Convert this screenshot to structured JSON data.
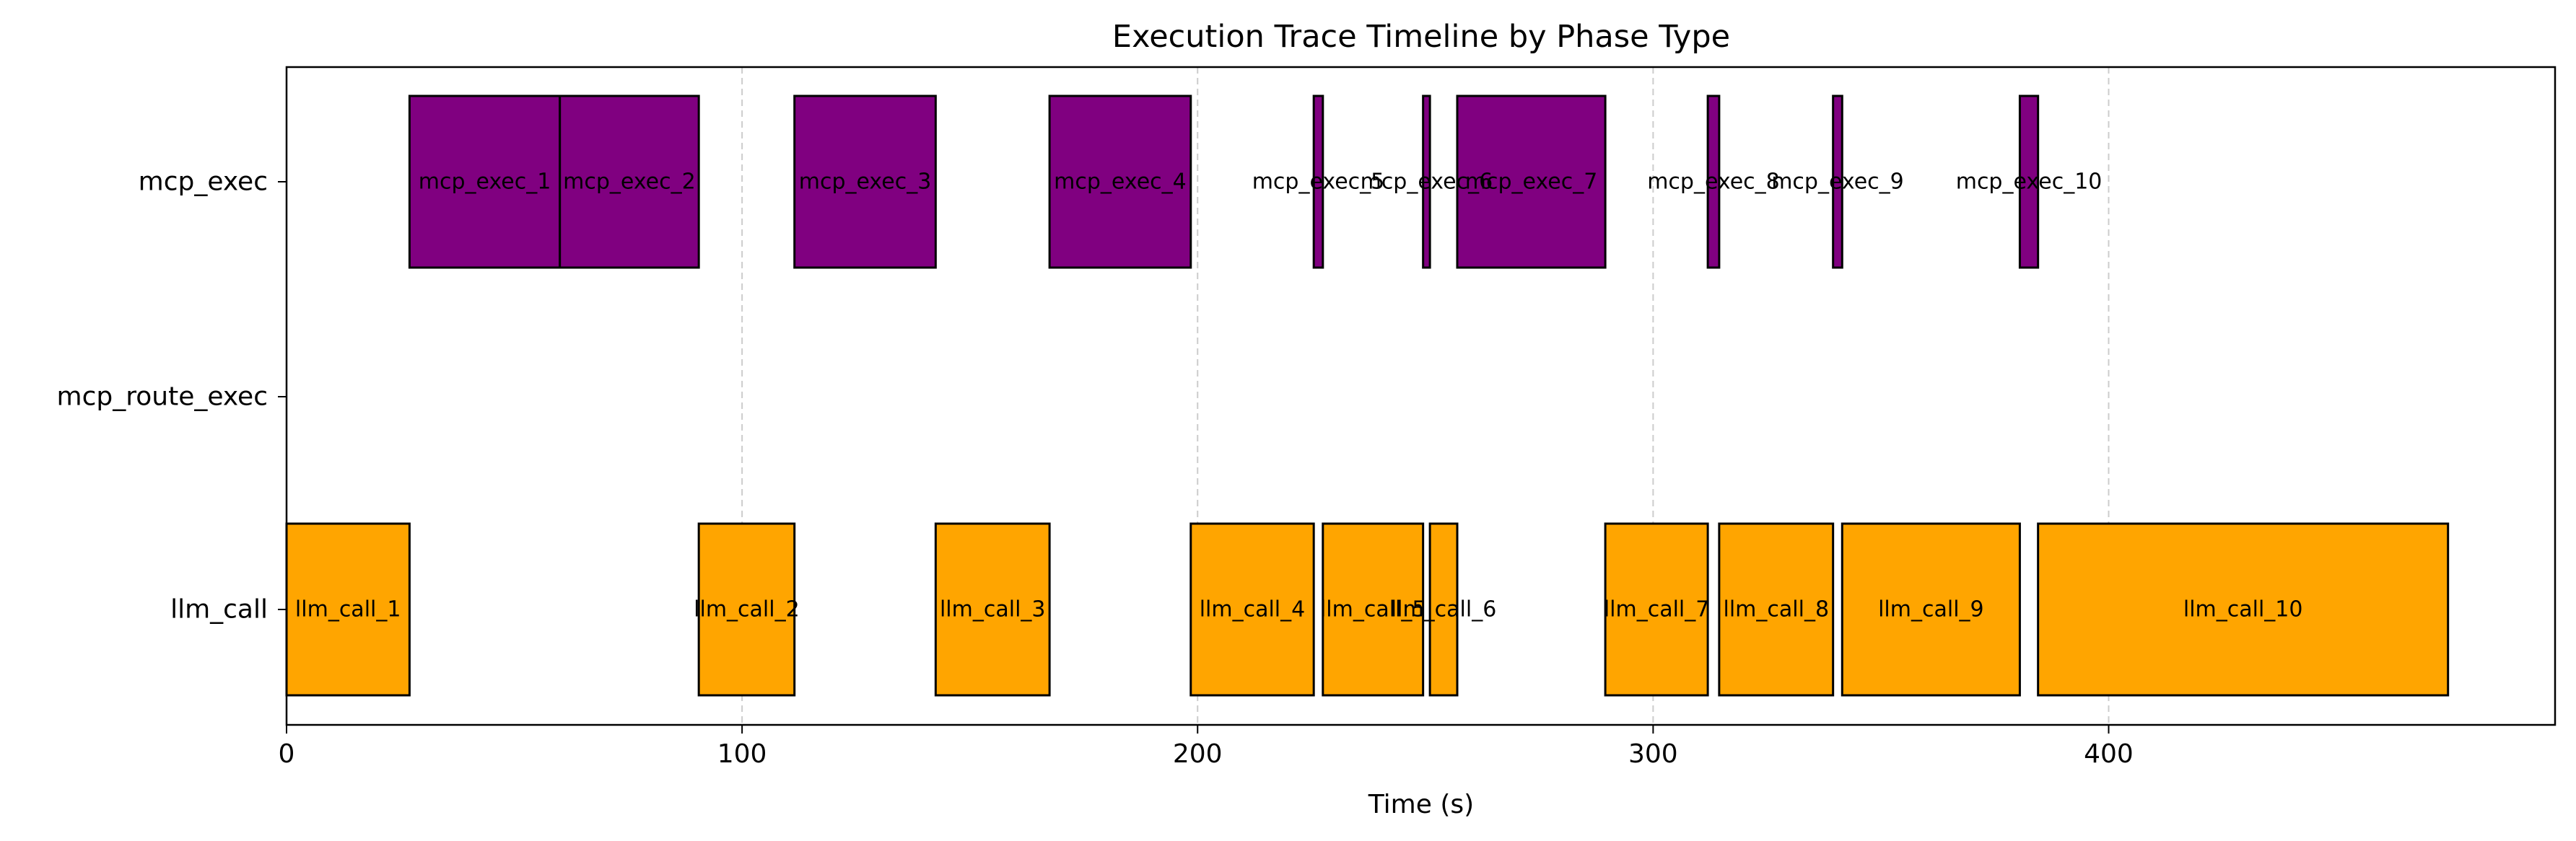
{
  "chart_data": {
    "type": "bar",
    "orientation": "horizontal-timeline",
    "title": "Execution Trace Timeline by Phase Type",
    "xlabel": "Time (s)",
    "ylabel": "",
    "xlim": [
      0,
      498
    ],
    "xticks": [
      0,
      100,
      200,
      300,
      400
    ],
    "grid": "vertical dashed at x ticks",
    "categories": [
      "llm_call",
      "mcp_route_exec",
      "mcp_exec"
    ],
    "colors": {
      "mcp_exec": "#800080",
      "llm_call": "#FFA500",
      "edge": "#000000",
      "grid": "#cccccc"
    },
    "series": [
      {
        "category": "mcp_exec",
        "segments": [
          {
            "label": "mcp_exec_1",
            "start": 27,
            "end": 60
          },
          {
            "label": "mcp_exec_2",
            "start": 60,
            "end": 90.5
          },
          {
            "label": "mcp_exec_3",
            "start": 111.5,
            "end": 142.5
          },
          {
            "label": "mcp_exec_4",
            "start": 167.5,
            "end": 198.5
          },
          {
            "label": "mcp_exec_5",
            "start": 225.5,
            "end": 227.5
          },
          {
            "label": "mcp_exec_6",
            "start": 249.5,
            "end": 251
          },
          {
            "label": "mcp_exec_7",
            "start": 257,
            "end": 289.5
          },
          {
            "label": "mcp_exec_8",
            "start": 312,
            "end": 314.5
          },
          {
            "label": "mcp_exec_9",
            "start": 339.5,
            "end": 341.5
          },
          {
            "label": "mcp_exec_10",
            "start": 380.5,
            "end": 384.5
          }
        ]
      },
      {
        "category": "mcp_route_exec",
        "segments": []
      },
      {
        "category": "llm_call",
        "segments": [
          {
            "label": "llm_call_1",
            "start": 0,
            "end": 27
          },
          {
            "label": "llm_call_2",
            "start": 90.5,
            "end": 111.5
          },
          {
            "label": "llm_call_3",
            "start": 142.5,
            "end": 167.5
          },
          {
            "label": "llm_call_4",
            "start": 198.5,
            "end": 225.5
          },
          {
            "label": "llm_call_5",
            "start": 227.5,
            "end": 249.5
          },
          {
            "label": "llm_call_6",
            "start": 251,
            "end": 257
          },
          {
            "label": "llm_call_7",
            "start": 289.5,
            "end": 312
          },
          {
            "label": "llm_call_8",
            "start": 314.5,
            "end": 339.5
          },
          {
            "label": "llm_call_9",
            "start": 341.5,
            "end": 380.5
          },
          {
            "label": "llm_call_10",
            "start": 384.5,
            "end": 474.5
          }
        ]
      }
    ]
  }
}
